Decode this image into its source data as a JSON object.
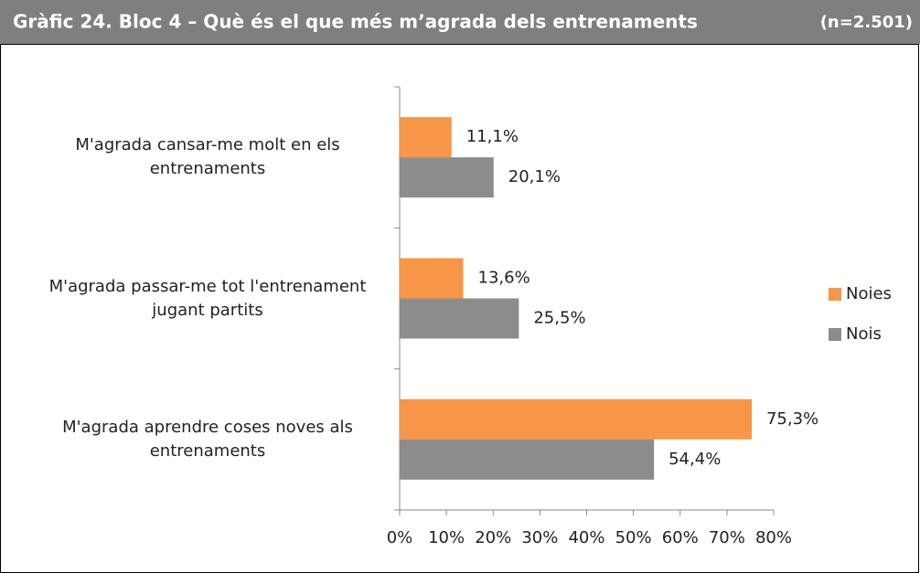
{
  "chart_data": {
    "type": "bar",
    "orientation": "horizontal",
    "title": "Gràfic 24. Bloc 4 – Què és el que més m’agrada dels entrenaments",
    "subtitle": "(n=2.501)",
    "categories": [
      "M'agrada cansar-me molt en els entrenaments",
      "M'agrada passar-me tot l'entrenament jugant partits",
      "M'agrada aprendre coses noves als entrenaments"
    ],
    "series": [
      {
        "name": "Noies",
        "color": "#f79646",
        "values": [
          11.1,
          13.6,
          75.3
        ],
        "value_labels": [
          "11,1%",
          "13,6%",
          "75,3%"
        ]
      },
      {
        "name": "Nois",
        "color": "#8c8c8c",
        "values": [
          20.1,
          25.5,
          54.4
        ],
        "value_labels": [
          "20,1%",
          "25,5%",
          "54,4%"
        ]
      }
    ],
    "xlim": [
      0,
      80
    ],
    "xticks": [
      {
        "value": 0,
        "label": "0%"
      },
      {
        "value": 10,
        "label": "10%"
      },
      {
        "value": 20,
        "label": "20%"
      },
      {
        "value": 30,
        "label": "30%"
      },
      {
        "value": 40,
        "label": "40%"
      },
      {
        "value": 50,
        "label": "50%"
      },
      {
        "value": 60,
        "label": "60%"
      },
      {
        "value": 70,
        "label": "70%"
      },
      {
        "value": 80,
        "label": "80%"
      }
    ],
    "legend": "right",
    "grid": false
  }
}
